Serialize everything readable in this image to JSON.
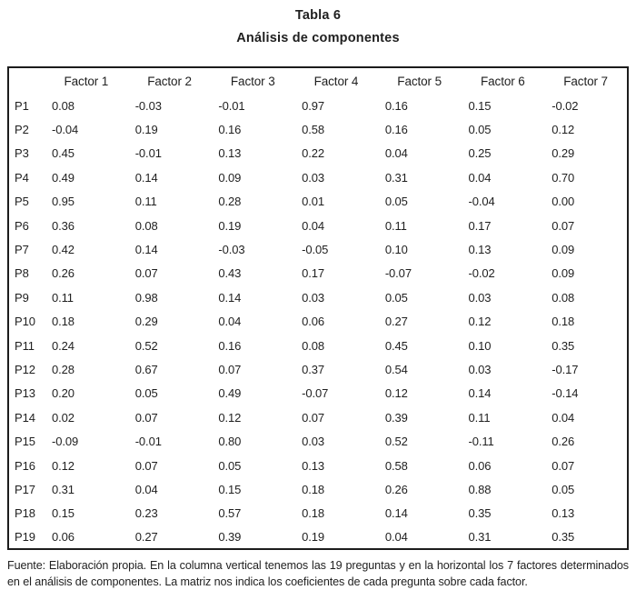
{
  "title": "Tabla 6",
  "subtitle": "Análisis de componentes",
  "table": {
    "corner_label": "",
    "columns": [
      "Factor 1",
      "Factor 2",
      "Factor 3",
      "Factor 4",
      "Factor 5",
      "Factor 6",
      "Factor 7"
    ],
    "rows": [
      {
        "label": "P1",
        "values": [
          "0.08",
          "-0.03",
          "-0.01",
          "0.97",
          "0.16",
          "0.15",
          "-0.02"
        ]
      },
      {
        "label": "P2",
        "values": [
          "-0.04",
          "0.19",
          "0.16",
          "0.58",
          "0.16",
          "0.05",
          "0.12"
        ]
      },
      {
        "label": "P3",
        "values": [
          "0.45",
          "-0.01",
          "0.13",
          "0.22",
          "0.04",
          "0.25",
          "0.29"
        ]
      },
      {
        "label": "P4",
        "values": [
          "0.49",
          "0.14",
          "0.09",
          "0.03",
          "0.31",
          "0.04",
          "0.70"
        ]
      },
      {
        "label": "P5",
        "values": [
          "0.95",
          "0.11",
          "0.28",
          "0.01",
          "0.05",
          "-0.04",
          "0.00"
        ]
      },
      {
        "label": "P6",
        "values": [
          "0.36",
          "0.08",
          "0.19",
          "0.04",
          "0.11",
          "0.17",
          "0.07"
        ]
      },
      {
        "label": "P7",
        "values": [
          "0.42",
          "0.14",
          "-0.03",
          "-0.05",
          "0.10",
          "0.13",
          "0.09"
        ]
      },
      {
        "label": "P8",
        "values": [
          "0.26",
          "0.07",
          "0.43",
          "0.17",
          "-0.07",
          "-0.02",
          "0.09"
        ]
      },
      {
        "label": "P9",
        "values": [
          "0.11",
          "0.98",
          "0.14",
          "0.03",
          "0.05",
          "0.03",
          "0.08"
        ]
      },
      {
        "label": "P10",
        "values": [
          "0.18",
          "0.29",
          "0.04",
          "0.06",
          "0.27",
          "0.12",
          "0.18"
        ]
      },
      {
        "label": "P11",
        "values": [
          "0.24",
          "0.52",
          "0.16",
          "0.08",
          "0.45",
          "0.10",
          "0.35"
        ]
      },
      {
        "label": "P12",
        "values": [
          "0.28",
          "0.67",
          "0.07",
          "0.37",
          "0.54",
          "0.03",
          "-0.17"
        ]
      },
      {
        "label": "P13",
        "values": [
          "0.20",
          "0.05",
          "0.49",
          "-0.07",
          "0.12",
          "0.14",
          "-0.14"
        ]
      },
      {
        "label": "P14",
        "values": [
          "0.02",
          "0.07",
          "0.12",
          "0.07",
          "0.39",
          "0.11",
          "0.04"
        ]
      },
      {
        "label": "P15",
        "values": [
          "-0.09",
          "-0.01",
          "0.80",
          "0.03",
          "0.52",
          "-0.11",
          "0.26"
        ]
      },
      {
        "label": "P16",
        "values": [
          "0.12",
          "0.07",
          "0.05",
          "0.13",
          "0.58",
          "0.06",
          "0.07"
        ]
      },
      {
        "label": "P17",
        "values": [
          "0.31",
          "0.04",
          "0.15",
          "0.18",
          "0.26",
          "0.88",
          "0.05"
        ]
      },
      {
        "label": "P18",
        "values": [
          "0.15",
          "0.23",
          "0.57",
          "0.18",
          "0.14",
          "0.35",
          "0.13"
        ]
      },
      {
        "label": "P19",
        "values": [
          "0.06",
          "0.27",
          "0.39",
          "0.19",
          "0.04",
          "0.31",
          "0.35"
        ]
      }
    ]
  },
  "footnote": "Fuente: Elaboración propia. En la columna vertical tenemos las 19 preguntas y en la horizontal los 7 factores determinados en el análisis de componentes. La matriz nos indica los coeficientes de cada pregunta sobre cada factor."
}
